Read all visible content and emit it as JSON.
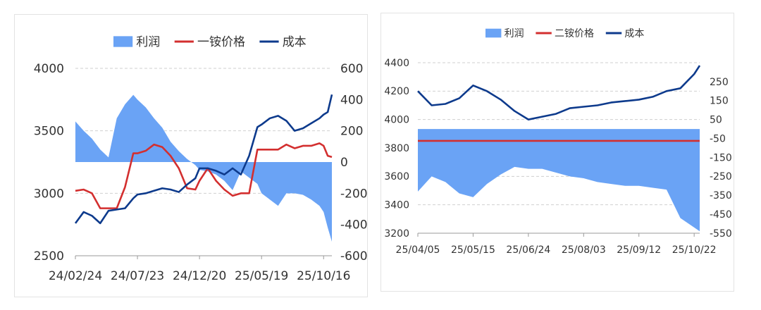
{
  "charts": [
    {
      "id": "left",
      "chart_data": {
        "type": "bar+line",
        "series": [
          {
            "name": "利润",
            "kind": "area",
            "axis": "right",
            "color": "#6aa3f5",
            "x": [
              "24/02/24",
              "24/03/15",
              "24/04/04",
              "24/04/24",
              "24/05/14",
              "24/06/03",
              "24/06/23",
              "24/07/13",
              "24/07/23",
              "24/08/12",
              "24/09/01",
              "24/09/21",
              "24/10/11",
              "24/10/31",
              "24/11/20",
              "24/12/10",
              "24/12/20",
              "25/01/09",
              "25/01/29",
              "25/02/18",
              "25/03/10",
              "25/03/30",
              "25/04/19",
              "25/05/09",
              "25/05/19",
              "25/06/08",
              "25/06/28",
              "25/07/18",
              "25/08/07",
              "25/08/27",
              "25/09/16",
              "25/10/06",
              "25/10/16",
              "25/10/26",
              "25/11/05"
            ],
            "values": [
              260,
              200,
              150,
              80,
              30,
              280,
              370,
              430,
              400,
              350,
              280,
              220,
              130,
              70,
              20,
              -20,
              -50,
              -60,
              -80,
              -120,
              -180,
              -60,
              -100,
              -140,
              -200,
              -240,
              -280,
              -200,
              -200,
              -210,
              -240,
              -280,
              -320,
              -420,
              -510
            ]
          },
          {
            "name": "一铵价格",
            "kind": "line",
            "axis": "left",
            "color": "#d32f2f",
            "x": [
              "24/02/24",
              "24/03/15",
              "24/04/04",
              "24/04/24",
              "24/05/14",
              "24/06/03",
              "24/06/23",
              "24/07/13",
              "24/07/23",
              "24/08/12",
              "24/09/01",
              "24/09/21",
              "24/10/11",
              "24/10/31",
              "24/11/20",
              "24/12/10",
              "24/12/20",
              "25/01/09",
              "25/01/29",
              "25/02/18",
              "25/03/10",
              "25/03/30",
              "25/04/19",
              "25/05/09",
              "25/05/19",
              "25/06/08",
              "25/06/28",
              "25/07/18",
              "25/08/07",
              "25/08/27",
              "25/09/16",
              "25/10/06",
              "25/10/16",
              "25/10/26",
              "25/11/05"
            ],
            "values": [
              3020,
              3030,
              3000,
              2880,
              2880,
              2880,
              3050,
              3320,
              3320,
              3340,
              3390,
              3370,
              3300,
              3200,
              3040,
              3030,
              3100,
              3200,
              3100,
              3030,
              2980,
              3000,
              3000,
              3350,
              3350,
              3350,
              3350,
              3390,
              3360,
              3380,
              3380,
              3400,
              3380,
              3300,
              3290
            ]
          },
          {
            "name": "成本",
            "kind": "line",
            "axis": "left",
            "color": "#0d3a8c",
            "x": [
              "24/02/24",
              "24/03/15",
              "24/04/04",
              "24/04/24",
              "24/05/14",
              "24/06/03",
              "24/06/23",
              "24/07/13",
              "24/07/23",
              "24/08/12",
              "24/09/01",
              "24/09/21",
              "24/10/11",
              "24/10/31",
              "24/11/20",
              "24/12/10",
              "24/12/20",
              "25/01/09",
              "25/01/29",
              "25/02/18",
              "25/03/10",
              "25/03/30",
              "25/04/19",
              "25/05/09",
              "25/05/19",
              "25/06/08",
              "25/06/28",
              "25/07/18",
              "25/08/07",
              "25/08/27",
              "25/09/16",
              "25/10/06",
              "25/10/16",
              "25/10/26",
              "25/11/05"
            ],
            "values": [
              2760,
              2850,
              2820,
              2760,
              2860,
              2870,
              2880,
              2960,
              2990,
              3000,
              3020,
              3040,
              3030,
              3010,
              3070,
              3120,
              3200,
              3200,
              3180,
              3150,
              3200,
              3150,
              3300,
              3530,
              3550,
              3600,
              3620,
              3580,
              3500,
              3520,
              3560,
              3600,
              3630,
              3650,
              3790
            ]
          }
        ],
        "y_left": {
          "ylim": [
            2500,
            4000
          ],
          "ticks": [
            "2500",
            "3000",
            "3500",
            "4000"
          ]
        },
        "y_right": {
          "ylim": [
            -600,
            600
          ],
          "ticks": [
            "-600",
            "-400",
            "-200",
            "0",
            "200",
            "400",
            "600"
          ]
        },
        "x_ticks": [
          "24/02/24",
          "24/07/23",
          "24/12/20",
          "25/05/19",
          "25/10/16"
        ],
        "legend": "top-center",
        "grid": true
      }
    },
    {
      "id": "right",
      "chart_data": {
        "type": "bar+line",
        "series": [
          {
            "name": "利润",
            "kind": "area",
            "axis": "right",
            "color": "#6aa3f5",
            "x": [
              "25/04/05",
              "25/04/15",
              "25/04/25",
              "25/05/05",
              "25/05/15",
              "25/05/25",
              "25/06/04",
              "25/06/14",
              "25/06/24",
              "25/07/04",
              "25/07/14",
              "25/07/24",
              "25/08/03",
              "25/08/13",
              "25/08/23",
              "25/09/02",
              "25/09/12",
              "25/09/22",
              "25/10/02",
              "25/10/12",
              "25/10/22",
              "25/10/26"
            ],
            "values": [
              -330,
              -250,
              -280,
              -340,
              -360,
              -290,
              -240,
              -200,
              -210,
              -210,
              -230,
              -250,
              -260,
              -280,
              -290,
              -300,
              -300,
              -310,
              -320,
              -470,
              -520,
              -540
            ]
          },
          {
            "name": "二铵价格",
            "kind": "line",
            "axis": "left",
            "color": "#d32f2f",
            "x": [
              "25/04/05",
              "25/10/26"
            ],
            "values": [
              3850,
              3850
            ]
          },
          {
            "name": "成本",
            "kind": "line",
            "axis": "left",
            "color": "#0d3a8c",
            "x": [
              "25/04/05",
              "25/04/15",
              "25/04/25",
              "25/05/05",
              "25/05/15",
              "25/05/25",
              "25/06/04",
              "25/06/14",
              "25/06/24",
              "25/07/04",
              "25/07/14",
              "25/07/24",
              "25/08/03",
              "25/08/13",
              "25/08/23",
              "25/09/02",
              "25/09/12",
              "25/09/22",
              "25/10/02",
              "25/10/12",
              "25/10/22",
              "25/10/26"
            ],
            "values": [
              4200,
              4100,
              4110,
              4150,
              4240,
              4200,
              4140,
              4060,
              4000,
              4020,
              4040,
              4080,
              4090,
              4100,
              4120,
              4130,
              4140,
              4160,
              4200,
              4220,
              4320,
              4380
            ]
          }
        ],
        "y_left": {
          "ylim": [
            3200,
            4400
          ],
          "ticks": [
            "3200",
            "3400",
            "3600",
            "3800",
            "4000",
            "4200",
            "4400"
          ]
        },
        "y_right": {
          "ylim": [
            -550,
            350
          ],
          "ticks": [
            "-550",
            "-450",
            "-350",
            "-250",
            "-150",
            "-50",
            "50",
            "150",
            "250"
          ]
        },
        "x_ticks": [
          "25/04/05",
          "25/05/15",
          "25/06/24",
          "25/08/03",
          "25/09/12",
          "25/10/22"
        ],
        "legend": "top-center",
        "grid": true
      }
    }
  ]
}
